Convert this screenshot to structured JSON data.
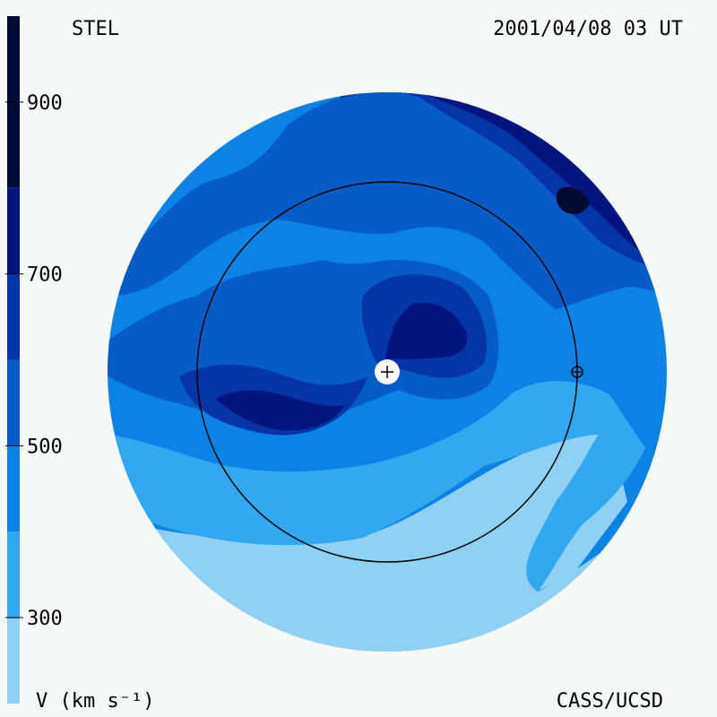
{
  "header": {
    "left_label": "STEL",
    "right_label": "2001/04/08 03 UT"
  },
  "footer": {
    "left_label": "V (km s⁻¹)",
    "right_label": "CASS/UCSD"
  },
  "chart_data": {
    "type": "heatmap",
    "title": "",
    "colorbar": {
      "label": "V (km s⁻¹)",
      "tick_labels": [
        "900",
        "700",
        "500",
        "300"
      ],
      "tick_values": [
        900,
        700,
        500,
        300
      ],
      "range": [
        200,
        1000
      ],
      "bands": [
        {
          "min": 200,
          "max": 300,
          "color": "#8fd1f5"
        },
        {
          "min": 300,
          "max": 400,
          "color": "#33a8f0"
        },
        {
          "min": 400,
          "max": 500,
          "color": "#0a82e6"
        },
        {
          "min": 500,
          "max": 600,
          "color": "#055cc6"
        },
        {
          "min": 600,
          "max": 700,
          "color": "#0434a6"
        },
        {
          "min": 700,
          "max": 800,
          "color": "#02157e"
        },
        {
          "min": 800,
          "max": 1000,
          "color": "#000a33"
        }
      ]
    },
    "map": {
      "background_color": "#0a82e6",
      "center_marker": "sun-plus-icon",
      "orbit_marker": "earth-icon",
      "orbit_ring": true
    }
  }
}
